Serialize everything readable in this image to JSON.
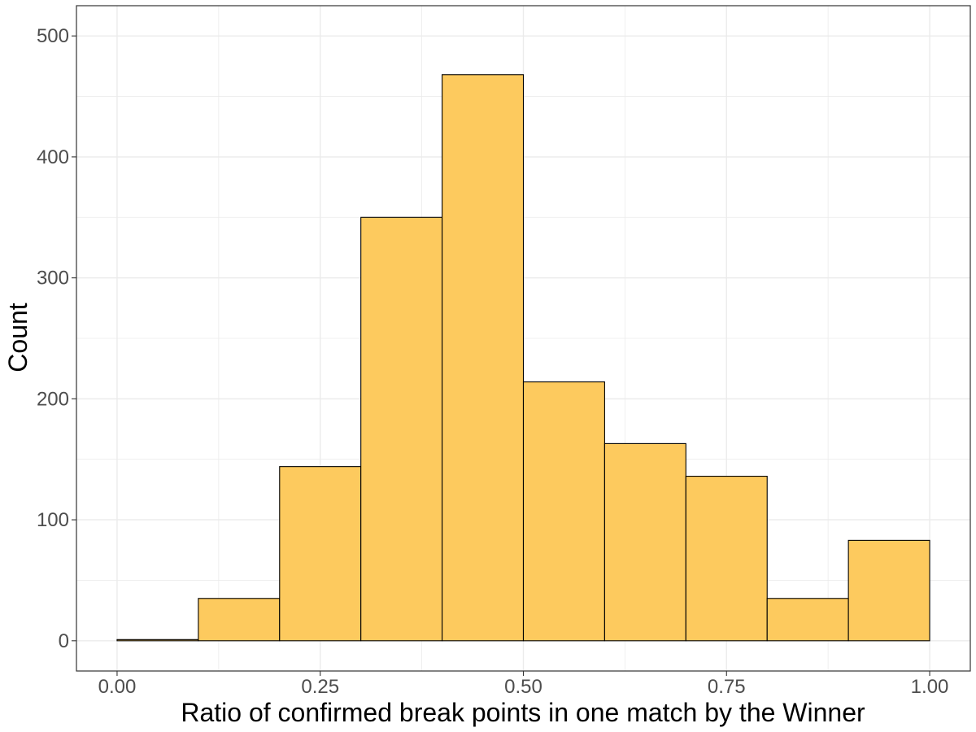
{
  "chart_data": {
    "type": "bar",
    "subtype": "histogram",
    "title": "",
    "xlabel": "Ratio of confirmed break points in one match by the Winner",
    "ylabel": "Count",
    "xlim": [
      -0.05,
      1.05
    ],
    "ylim": [
      -25,
      525
    ],
    "x_ticks": [
      0.0,
      0.25,
      0.5,
      0.75,
      1.0
    ],
    "x_tick_labels": [
      "0.00",
      "0.25",
      "0.50",
      "0.75",
      "1.00"
    ],
    "y_ticks": [
      0,
      100,
      200,
      300,
      400,
      500
    ],
    "y_tick_labels": [
      "0",
      "100",
      "200",
      "300",
      "400",
      "500"
    ],
    "bins": [
      {
        "start": 0.0,
        "end": 0.1,
        "count": 1
      },
      {
        "start": 0.1,
        "end": 0.2,
        "count": 35
      },
      {
        "start": 0.2,
        "end": 0.3,
        "count": 144
      },
      {
        "start": 0.3,
        "end": 0.4,
        "count": 350
      },
      {
        "start": 0.4,
        "end": 0.5,
        "count": 468
      },
      {
        "start": 0.5,
        "end": 0.6,
        "count": 214
      },
      {
        "start": 0.6,
        "end": 0.7,
        "count": 163
      },
      {
        "start": 0.7,
        "end": 0.8,
        "count": 136
      },
      {
        "start": 0.8,
        "end": 0.9,
        "count": 35
      },
      {
        "start": 0.9,
        "end": 1.0,
        "count": 83
      }
    ],
    "bar_fill": "#FDCA5E",
    "bar_stroke": "#000000",
    "grid": true,
    "grid_color": "#EBEBEB",
    "panel_border": "#333333",
    "legend": "none"
  }
}
